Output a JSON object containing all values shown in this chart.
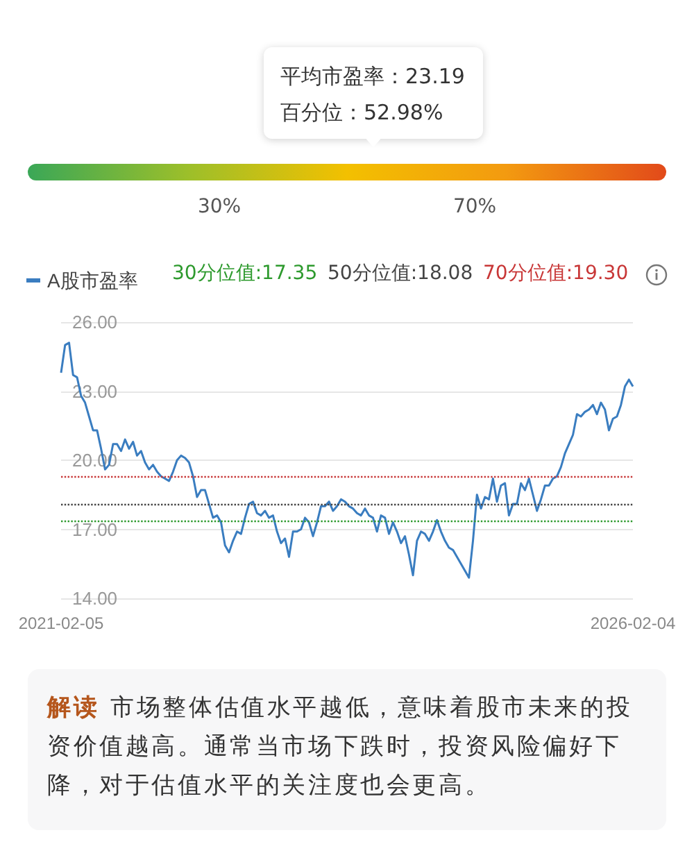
{
  "chart_data": {
    "type": "line",
    "categories": [
      "2021-02-05",
      null,
      null,
      null,
      null,
      null,
      null,
      null,
      null,
      null,
      null,
      null,
      null,
      null,
      null,
      null,
      null,
      null,
      null,
      null,
      null,
      null,
      null,
      null,
      null,
      null,
      null,
      null,
      null,
      null,
      null,
      null,
      null,
      null,
      null,
      null,
      null,
      null,
      null,
      null,
      null,
      null,
      null,
      null,
      null,
      null,
      null,
      null,
      null,
      null,
      null,
      null,
      null,
      null,
      null,
      null,
      null,
      null,
      null,
      null,
      null,
      null,
      null,
      null,
      null,
      null,
      null,
      null,
      null,
      null,
      null,
      null,
      null,
      null,
      null,
      null,
      null,
      null,
      null,
      null,
      null,
      null,
      null,
      null,
      null,
      null,
      null,
      null,
      null,
      null,
      null,
      null,
      null,
      null,
      null,
      null,
      null,
      null,
      null,
      null,
      null,
      null,
      null,
      null,
      null,
      null,
      null,
      null,
      null,
      null,
      null,
      null,
      null,
      null,
      null,
      null,
      null,
      null,
      null,
      null,
      null,
      null,
      null,
      null,
      null,
      null,
      null,
      null,
      null,
      null,
      null,
      null,
      null,
      null,
      null,
      null,
      null,
      null,
      null,
      null,
      null,
      null,
      null,
      "2026-02-04"
    ],
    "series": [
      {
        "name": "A股市盈率",
        "color": "#3a7dc0",
        "values": [
          23.8,
          25.0,
          25.1,
          23.7,
          23.6,
          22.8,
          22.5,
          21.9,
          21.3,
          21.3,
          20.5,
          19.6,
          19.8,
          20.7,
          20.7,
          20.4,
          20.9,
          20.5,
          20.8,
          20.2,
          20.4,
          19.9,
          19.6,
          19.8,
          19.5,
          19.3,
          19.2,
          19.1,
          19.5,
          20.0,
          20.2,
          20.1,
          19.9,
          19.3,
          18.4,
          18.7,
          18.7,
          18.1,
          17.5,
          17.6,
          17.3,
          16.3,
          16.0,
          16.5,
          16.9,
          16.8,
          17.5,
          18.1,
          18.2,
          17.7,
          17.6,
          17.8,
          17.5,
          17.6,
          16.9,
          16.4,
          16.6,
          15.8,
          16.9,
          16.9,
          17.0,
          17.5,
          17.3,
          16.7,
          17.3,
          18.0,
          18.0,
          18.2,
          17.8,
          18.0,
          18.3,
          18.2,
          18.0,
          17.9,
          17.7,
          17.6,
          17.9,
          17.6,
          17.5,
          16.9,
          17.6,
          17.5,
          16.8,
          17.3,
          16.9,
          16.4,
          16.7,
          15.9,
          15.0,
          16.5,
          16.9,
          16.8,
          16.5,
          16.9,
          17.4,
          16.9,
          16.5,
          16.2,
          16.1,
          15.8,
          15.5,
          15.2,
          14.9,
          16.5,
          18.5,
          17.9,
          18.4,
          18.3,
          19.2,
          18.2,
          18.9,
          19.0,
          17.6,
          18.1,
          18.1,
          19.0,
          18.7,
          19.2,
          18.5,
          17.8,
          18.3,
          18.9,
          18.9,
          19.2,
          19.3,
          19.7,
          20.3,
          20.7,
          21.1,
          22.0,
          21.9,
          22.1,
          22.2,
          22.4,
          22.0,
          22.5,
          22.2,
          21.3,
          21.8,
          21.9,
          22.4,
          23.2,
          23.5,
          23.2
        ]
      }
    ],
    "ylim": [
      14,
      26
    ],
    "yticks": [
      {
        "value": 14,
        "label": "14.00"
      },
      {
        "value": 17,
        "label": "17.00"
      },
      {
        "value": 20,
        "label": "20.00"
      },
      {
        "value": 23,
        "label": "23.00"
      },
      {
        "value": 26,
        "label": "26.00"
      }
    ],
    "grid": "y",
    "legend": "top left",
    "marker": "none",
    "ref_lines": [
      {
        "axis": "y",
        "value": 17.35,
        "label": "30分位值:17.35",
        "color": "#2e9a2e",
        "line_style": "dotted"
      },
      {
        "axis": "y",
        "value": 18.08,
        "label": "50分位值:18.08",
        "color": "#444444",
        "line_style": "dotted"
      },
      {
        "axis": "y",
        "value": 19.3,
        "label": "70分位值:19.30",
        "color": "#c83737",
        "line_style": "dotted"
      }
    ],
    "annotations": [
      "平均市盈率：23.19",
      "百分位：52.98%",
      "30%",
      "70%",
      "解读",
      "市场整体估值水平越低，意味着股市未来的投资价值越高。通常当市场下跌时，投资风险偏好下降，对于估值水平的关注度也会更高。"
    ]
  }
}
